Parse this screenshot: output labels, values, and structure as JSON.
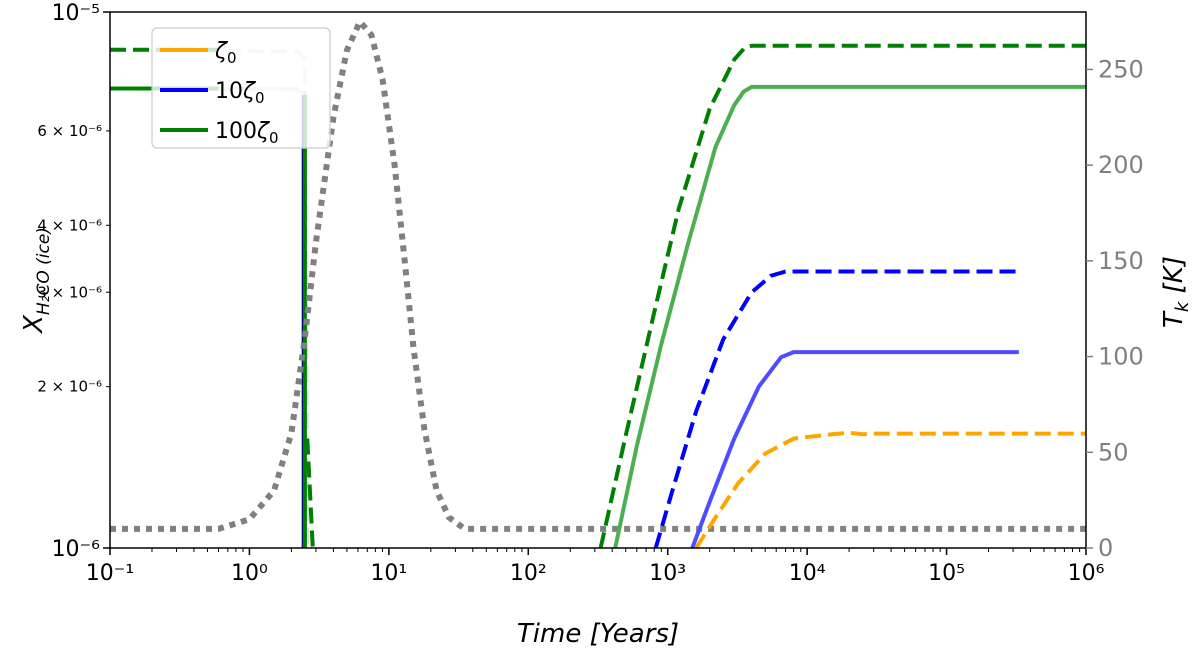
{
  "chart_data": {
    "type": "line",
    "xlabel": "Time [Years]",
    "ylabel_left": "X_{H2CO (ice)}",
    "ylabel_right": "T_k [K]",
    "x_scale": "log",
    "y_left_scale": "log",
    "xlim": [
      0.1,
      1000000
    ],
    "ylim_left": [
      1e-06,
      1e-05
    ],
    "ylim_right": [
      0,
      280
    ],
    "x_ticks": [
      {
        "value": 0.1,
        "label": "10⁻¹"
      },
      {
        "value": 1,
        "label": "10⁰"
      },
      {
        "value": 10,
        "label": "10¹"
      },
      {
        "value": 100,
        "label": "10²"
      },
      {
        "value": 1000,
        "label": "10³"
      },
      {
        "value": 10000,
        "label": "10⁴"
      },
      {
        "value": 100000,
        "label": "10⁵"
      },
      {
        "value": 1000000,
        "label": "10⁶"
      }
    ],
    "y_left_major_ticks": [
      {
        "value": 1e-06,
        "label": "10⁻⁶"
      },
      {
        "value": 1e-05,
        "label": "10⁻⁵"
      }
    ],
    "y_left_minor_ticks": [
      {
        "value": 2e-06,
        "label": "2 × 10⁻⁶"
      },
      {
        "value": 3e-06,
        "label": "3 × 10⁻⁶"
      },
      {
        "value": 4e-06,
        "label": "4 × 10⁻⁶"
      },
      {
        "value": 6e-06,
        "label": "6 × 10⁻⁶"
      }
    ],
    "y_right_ticks": [
      0,
      50,
      100,
      150,
      200,
      250
    ],
    "legend": {
      "placement": "top-left",
      "entries": [
        {
          "label_base": "ζ",
          "label_prefix": "",
          "label_sub": "0",
          "color": "#FFA500"
        },
        {
          "label_base": "ζ",
          "label_prefix": "10",
          "label_sub": "0",
          "color": "#0000FF"
        },
        {
          "label_base": "ζ",
          "label_prefix": "100",
          "label_sub": "0",
          "color": "#008000"
        }
      ]
    },
    "series": [
      {
        "color": "#008000",
        "style": "dashed",
        "opacity": 0.2,
        "axis": "left",
        "points": [
          [
            0.1,
            8.5e-06
          ],
          [
            2.2,
            8.45e-06
          ],
          [
            2.5,
            8.2e-06
          ],
          [
            2.6,
            1e-06
          ]
        ]
      },
      {
        "color": "#008000",
        "style": "dashed",
        "opacity": 1.0,
        "axis": "left",
        "points": [
          [
            0.1,
            8.5e-06
          ],
          [
            0.6,
            8.5e-06
          ]
        ]
      },
      {
        "color": "#008000",
        "style": "solid",
        "opacity": 0.2,
        "axis": "left",
        "points": [
          [
            0.1,
            7.2e-06
          ],
          [
            2.2,
            7.18e-06
          ],
          [
            2.45,
            7.05e-06
          ],
          [
            2.5,
            1e-06
          ]
        ]
      },
      {
        "color": "#008000",
        "style": "solid",
        "opacity": 1.0,
        "axis": "left",
        "points": [
          [
            0.1,
            7.2e-06
          ],
          [
            0.6,
            7.2e-06
          ]
        ]
      },
      {
        "color": "#000080",
        "style": "solid",
        "opacity": 1.0,
        "axis": "left",
        "points": [
          [
            2.45,
            7e-06
          ],
          [
            2.45,
            1e-06
          ]
        ]
      },
      {
        "color": "#008000",
        "style": "solid",
        "opacity": 1.0,
        "axis": "left",
        "points": [
          [
            2.5,
            7e-06
          ],
          [
            2.5,
            1e-06
          ]
        ]
      },
      {
        "color": "#008000",
        "style": "dashed",
        "opacity": 1.0,
        "axis": "left",
        "points": [
          [
            2.6,
            1.6e-06
          ],
          [
            2.85,
            1e-06
          ]
        ]
      },
      {
        "color": "#808080",
        "style": "dotted",
        "opacity": 1.0,
        "axis": "right",
        "points": [
          [
            0.1,
            10
          ],
          [
            0.6,
            10
          ],
          [
            1.0,
            15
          ],
          [
            1.5,
            30
          ],
          [
            2.0,
            60
          ],
          [
            2.5,
            110
          ],
          [
            3.0,
            160
          ],
          [
            4.0,
            225
          ],
          [
            5.0,
            260
          ],
          [
            6.2,
            275
          ],
          [
            7.5,
            268
          ],
          [
            9.0,
            245
          ],
          [
            11.0,
            200
          ],
          [
            13.0,
            150
          ],
          [
            15.0,
            105
          ],
          [
            18.0,
            62
          ],
          [
            22.0,
            30
          ],
          [
            27.0,
            16
          ],
          [
            35.0,
            10
          ],
          [
            1000000,
            10
          ]
        ]
      },
      {
        "color": "#008000",
        "style": "dashed",
        "opacity": 1.0,
        "axis": "left",
        "points": [
          [
            330,
            1e-06
          ],
          [
            500,
            1.62e-06
          ],
          [
            800,
            2.75e-06
          ],
          [
            1200,
            4.3e-06
          ],
          [
            2000,
            6.6e-06
          ],
          [
            3000,
            8.15e-06
          ],
          [
            3600,
            8.6e-06
          ],
          [
            4000,
            8.65e-06
          ],
          [
            1000000,
            8.65e-06
          ]
        ]
      },
      {
        "color": "#4CAF50",
        "style": "solid",
        "opacity": 1.0,
        "axis": "left",
        "points": [
          [
            420,
            1e-06
          ],
          [
            600,
            1.55e-06
          ],
          [
            900,
            2.4e-06
          ],
          [
            1400,
            3.7e-06
          ],
          [
            2200,
            5.6e-06
          ],
          [
            3000,
            6.7e-06
          ],
          [
            3500,
            7.1e-06
          ],
          [
            4000,
            7.25e-06
          ],
          [
            1000000,
            7.25e-06
          ]
        ]
      },
      {
        "color": "#0000FF",
        "style": "dashed",
        "opacity": 1.0,
        "axis": "left",
        "points": [
          [
            820,
            1e-06
          ],
          [
            1100,
            1.3e-06
          ],
          [
            1600,
            1.8e-06
          ],
          [
            2500,
            2.45e-06
          ],
          [
            4000,
            3e-06
          ],
          [
            5500,
            3.22e-06
          ],
          [
            7000,
            3.28e-06
          ],
          [
            330000,
            3.28e-06
          ]
        ]
      },
      {
        "color": "#4D4DFF",
        "style": "solid",
        "opacity": 1.0,
        "axis": "left",
        "points": [
          [
            1500,
            1e-06
          ],
          [
            2000,
            1.22e-06
          ],
          [
            3000,
            1.6e-06
          ],
          [
            4500,
            2e-06
          ],
          [
            6500,
            2.27e-06
          ],
          [
            8000,
            2.32e-06
          ],
          [
            330000,
            2.32e-06
          ]
        ]
      },
      {
        "color": "#FFA500",
        "style": "dashed",
        "opacity": 1.0,
        "axis": "left",
        "points": [
          [
            1600,
            1e-06
          ],
          [
            2200,
            1.14e-06
          ],
          [
            3200,
            1.32e-06
          ],
          [
            5000,
            1.5e-06
          ],
          [
            8000,
            1.6e-06
          ],
          [
            15000,
            1.63e-06
          ],
          [
            20000,
            1.64e-06
          ],
          [
            25000,
            1.63e-06
          ],
          [
            30000,
            1.635e-06
          ],
          [
            1000000,
            1.635e-06
          ]
        ]
      }
    ]
  }
}
